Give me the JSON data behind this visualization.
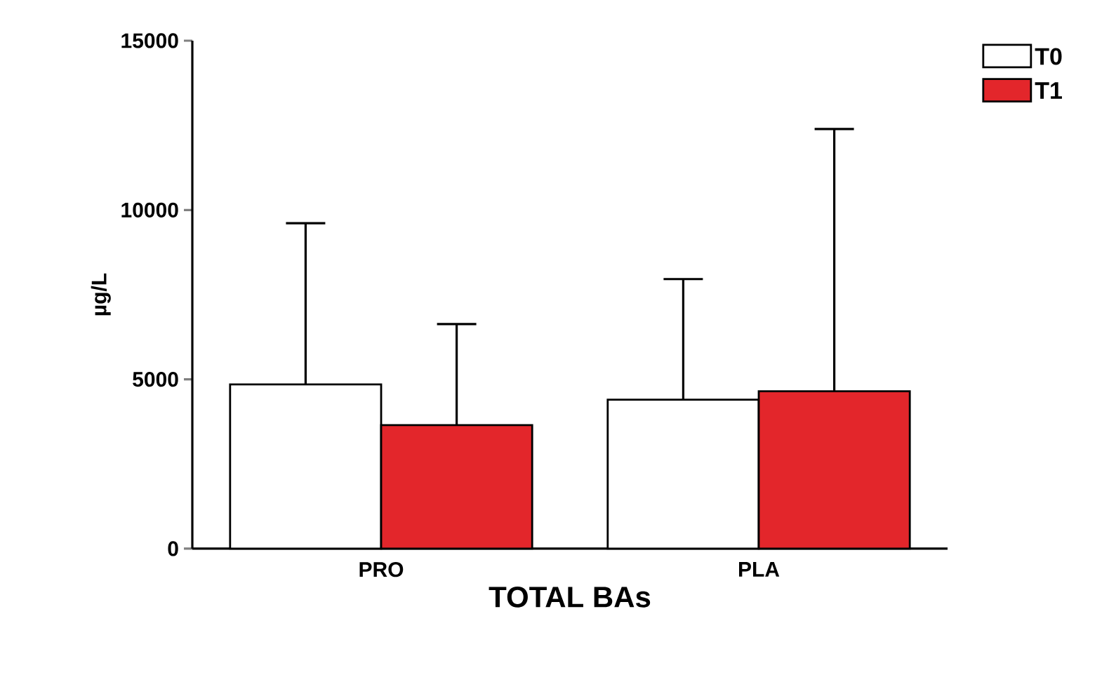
{
  "chart_data": {
    "type": "bar",
    "xlabel": "TOTAL BAs",
    "ylabel": "µg/L",
    "categories": [
      "PRO",
      "PLA"
    ],
    "series": [
      {
        "name": "T0",
        "color": "#ffffff",
        "values": [
          4850,
          4400
        ],
        "errors": [
          [
            4850,
            9610
          ],
          [
            4400,
            7960
          ]
        ]
      },
      {
        "name": "T1",
        "color": "#e3262b",
        "values": [
          3650,
          4650
        ],
        "errors": [
          [
            3650,
            6630
          ],
          [
            4650,
            12390
          ]
        ]
      }
    ],
    "ylim": [
      0,
      15000
    ],
    "yticks": [
      0,
      5000,
      10000,
      15000
    ],
    "legend": "top right",
    "grid": false
  }
}
